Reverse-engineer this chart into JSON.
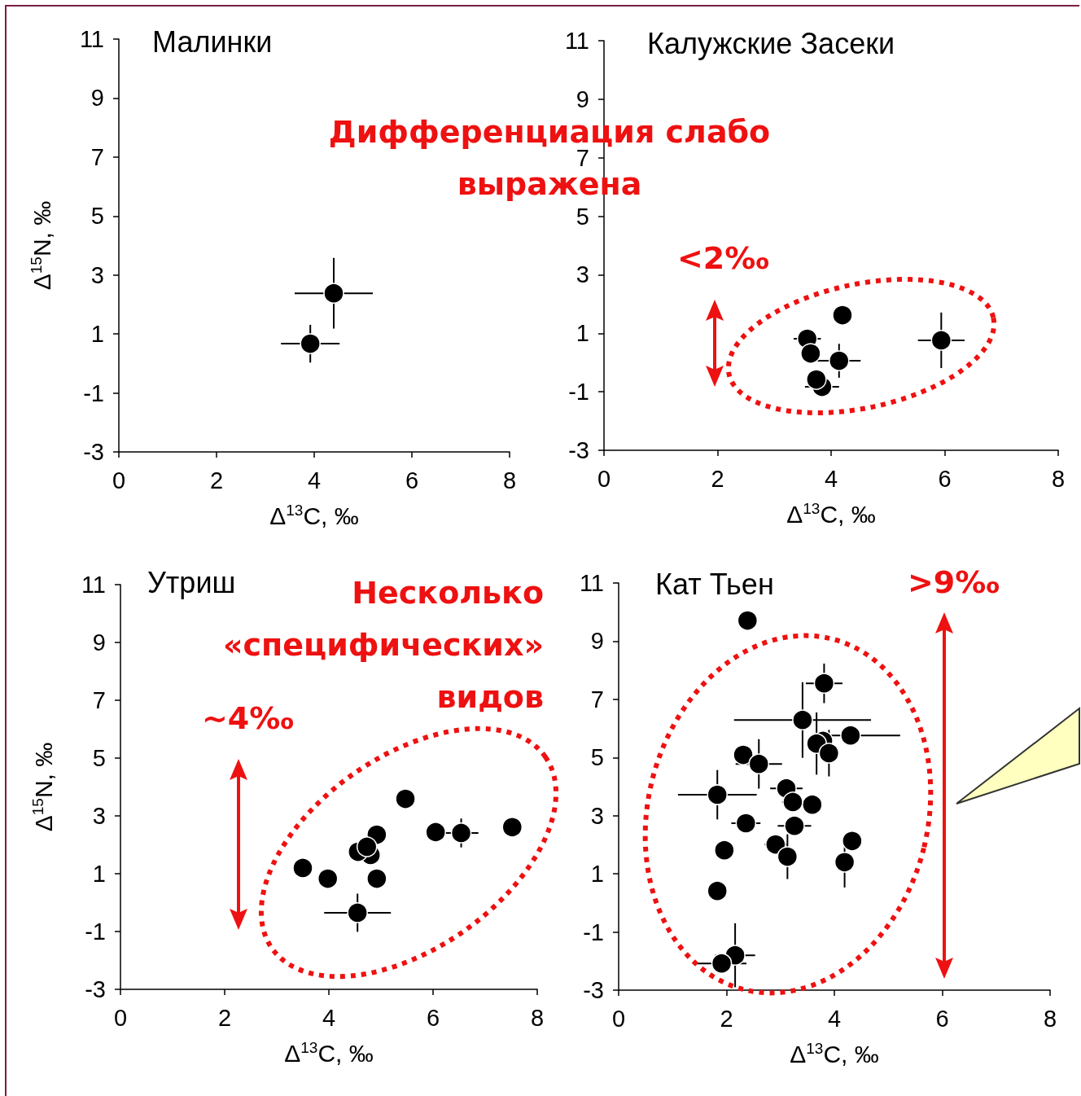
{
  "chart_data": [
    {
      "type": "scatter",
      "title": "Малинки",
      "xlabel": "Δ$^{13}$C, ‰",
      "ylabel": "Δ$^{15}$N, ‰",
      "annotations": [
        "Дифференциация слабо выражена"
      ],
      "color": "#000000",
      "marker": "circle",
      "xlim": [
        0,
        8
      ],
      "ylim": [
        -3,
        11
      ],
      "xticks": [
        0,
        2,
        4,
        6,
        8
      ],
      "yticks": [
        -3,
        -1,
        1,
        3,
        5,
        7,
        9,
        11
      ],
      "x": [
        4.4,
        3.92
      ],
      "values": [
        2.38,
        0.67
      ],
      "xerrors": [
        0.8,
        0.6
      ],
      "errors": [
        1.2,
        0.64
      ]
    },
    {
      "type": "scatter",
      "title": "Калужские Засеки",
      "xlabel": "Δ$^{13}$C, ‰",
      "annotations": [
        "<2‰"
      ],
      "color": "#000000",
      "marker": "circle",
      "xlim": [
        0,
        8
      ],
      "ylim": [
        -3,
        11
      ],
      "xticks": [
        0,
        2,
        4,
        6,
        8
      ],
      "yticks": [
        -3,
        -1,
        1,
        3,
        5,
        7,
        9,
        11
      ],
      "x": [
        4.2,
        3.58,
        3.64,
        4.14,
        3.84,
        3.74,
        5.94
      ],
      "values": [
        1.62,
        0.81,
        0.31,
        0.06,
        -0.83,
        -0.58,
        0.76
      ],
      "xerrors": [
        null,
        0.24,
        null,
        0.38,
        0.3,
        null,
        0.41
      ],
      "errors": [
        null,
        null,
        null,
        0.58,
        0.3,
        null,
        0.95
      ]
    },
    {
      "type": "scatter",
      "title": "Утриш",
      "xlabel": "Δ$^{13}$C, ‰",
      "ylabel": "Δ$^{15}$N, ‰",
      "annotations": [
        "Несколько «специфических» видов",
        "~4‰"
      ],
      "color": "#000000",
      "marker": "circle",
      "xlim": [
        0,
        8
      ],
      "ylim": [
        -3,
        11
      ],
      "xticks": [
        0,
        2,
        4,
        6,
        8
      ],
      "yticks": [
        -3,
        -1,
        1,
        3,
        5,
        7,
        9,
        11
      ],
      "x": [
        5.47,
        4.92,
        4.8,
        4.56,
        4.73,
        6.05,
        6.54,
        7.52,
        3.5,
        3.98,
        4.92,
        4.55
      ],
      "values": [
        3.59,
        2.35,
        1.65,
        1.76,
        1.93,
        2.44,
        2.41,
        2.61,
        1.2,
        0.83,
        0.83,
        -0.35
      ],
      "xerrors": [
        null,
        0.15,
        null,
        null,
        null,
        null,
        0.33,
        null,
        null,
        0.15,
        null,
        0.64
      ],
      "errors": [
        null,
        null,
        null,
        null,
        null,
        null,
        0.5,
        null,
        null,
        null,
        null,
        0.66
      ]
    },
    {
      "type": "scatter",
      "title": "Кат Тьен",
      "xlabel": "Δ$^{13}$C, ‰",
      "annotations": [
        ">9‰"
      ],
      "color": "#000000",
      "marker": "circle",
      "xlim": [
        0,
        8
      ],
      "ylim": [
        -3,
        11
      ],
      "xticks": [
        0,
        2,
        4,
        6,
        8
      ],
      "yticks": [
        -3,
        -1,
        1,
        3,
        5,
        7,
        9,
        11
      ],
      "x": [
        2.39,
        3.81,
        3.41,
        4.3,
        3.79,
        3.67,
        3.9,
        2.31,
        2.6,
        1.83,
        3.11,
        3.23,
        3.59,
        3.26,
        2.36,
        1.96,
        2.91,
        3.13,
        4.33,
        4.19,
        1.83,
        2.16,
        1.91
      ],
      "values": [
        9.71,
        7.55,
        6.29,
        5.76,
        5.57,
        5.48,
        5.15,
        5.09,
        4.78,
        3.72,
        3.94,
        3.47,
        3.38,
        2.65,
        2.74,
        1.81,
        2.01,
        1.59,
        2.13,
        1.4,
        0.41,
        -1.8,
        -2.08
      ],
      "xerrors": [
        null,
        0.34,
        1.27,
        [
          3.91,
          5.22
        ],
        null,
        null,
        null,
        null,
        0.43,
        0.73,
        0.3,
        0.2,
        null,
        0.31,
        0.27,
        null,
        0.2,
        null,
        null,
        null,
        null,
        0.37,
        0.46
      ],
      "errors": [
        null,
        0.68,
        1.3,
        null,
        null,
        1.07,
        0.8,
        null,
        0.85,
        0.85,
        null,
        null,
        null,
        0.3,
        null,
        null,
        null,
        0.77,
        null,
        0.87,
        null,
        1.1,
        null
      ]
    }
  ]
}
